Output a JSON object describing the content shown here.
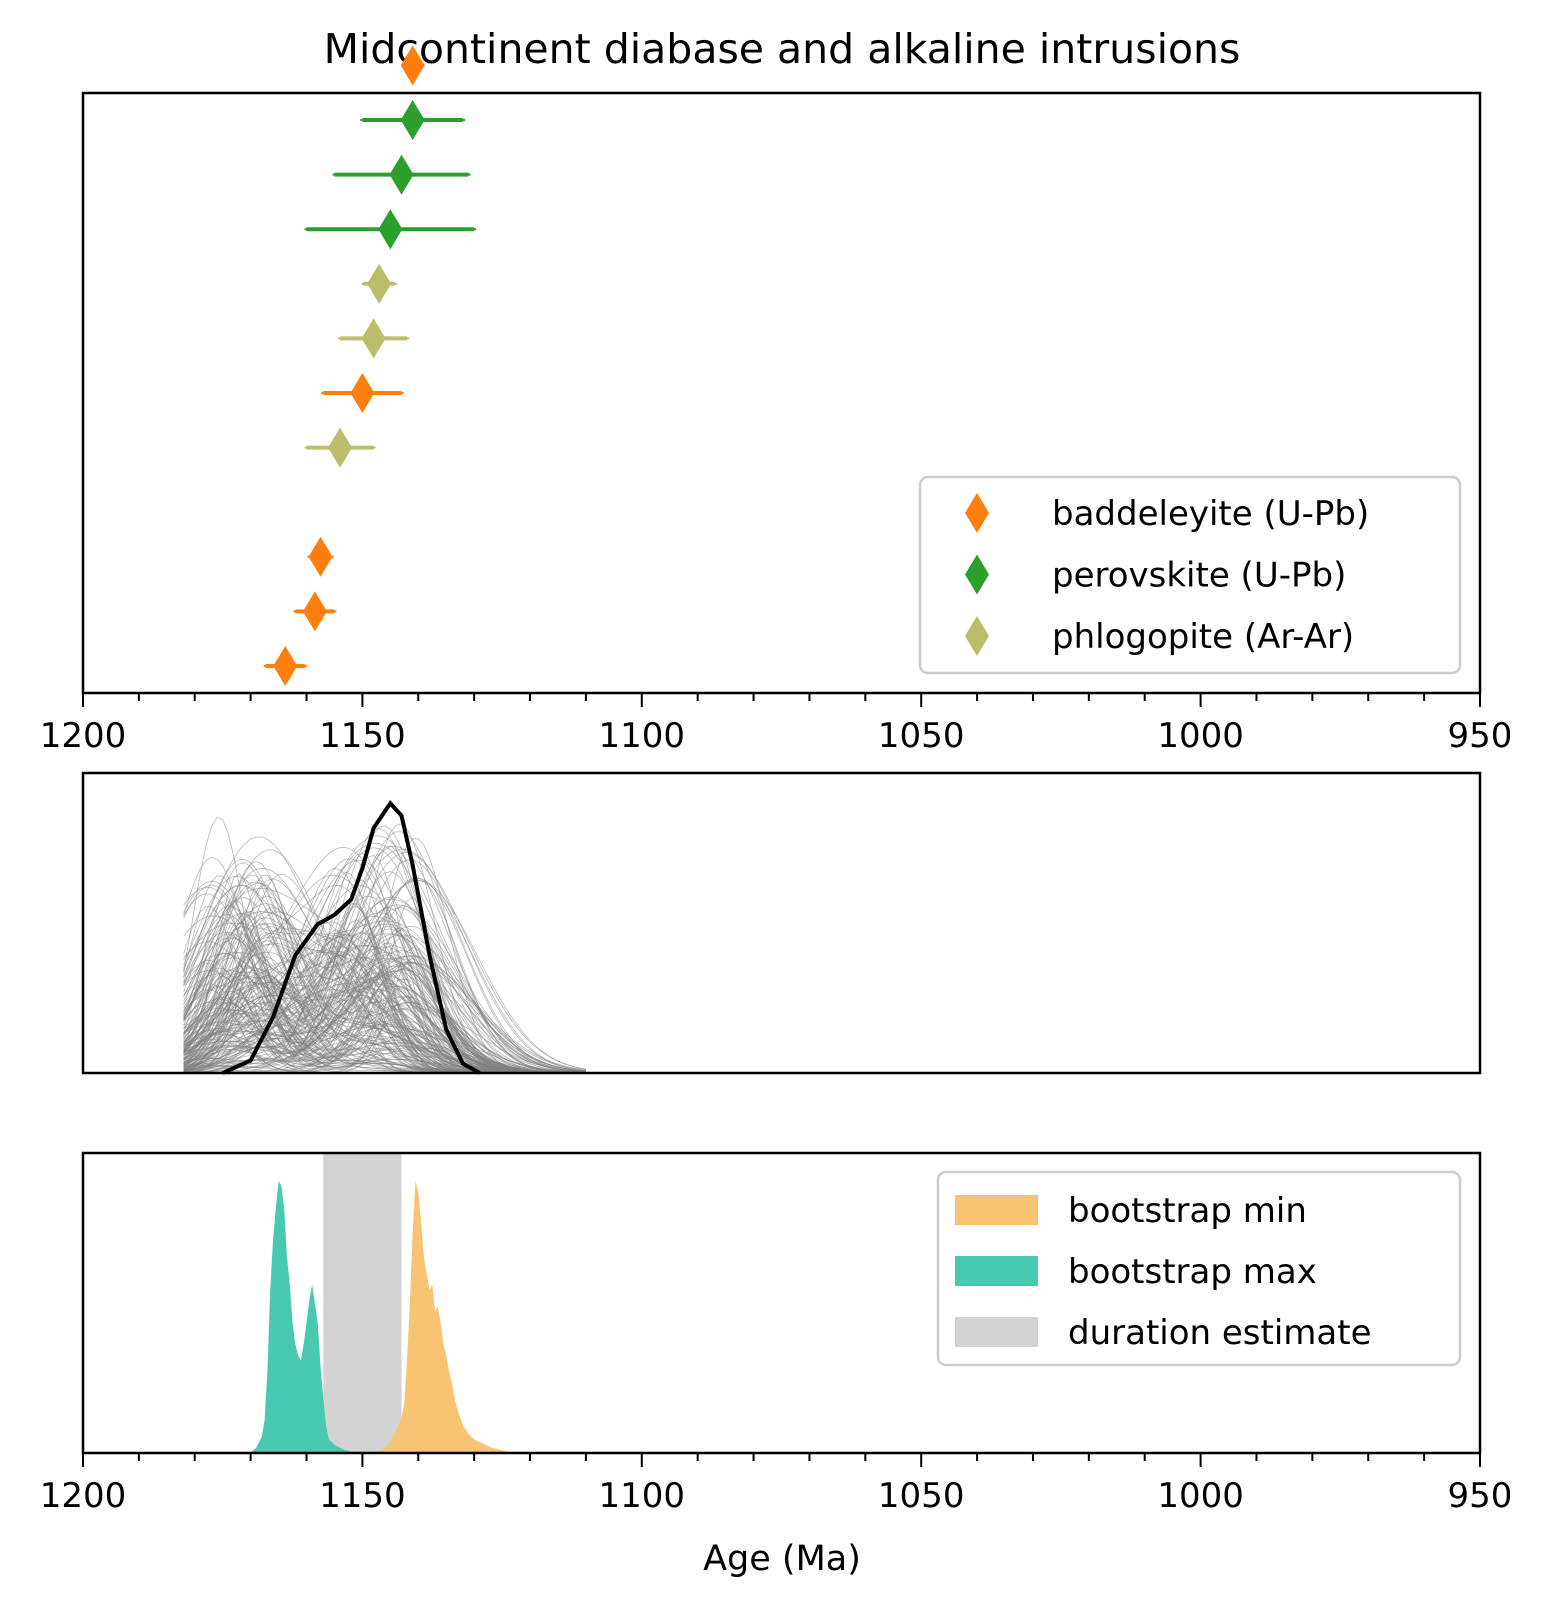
{
  "chart_data": [
    {
      "type": "scatter",
      "panel": "age-errorbars",
      "title": "Midcontinent diabase and alkaline intrusions",
      "x_reversed": true,
      "xlim": [
        1200,
        950
      ],
      "xticks": [
        1200,
        1150,
        1100,
        1050,
        1000,
        950
      ],
      "xtick_labels": [
        "1200",
        "1150",
        "1100",
        "1050",
        "1000",
        "950"
      ],
      "y_axis_shown": false,
      "grid": false,
      "legend_position": "lower-right",
      "series": [
        {
          "name": "baddeleyite (U-Pb)",
          "color": "#ff7f0e",
          "marker": "diamond",
          "points": [
            {
              "rank": 11,
              "age": 1141.0,
              "err": 0.6
            },
            {
              "rank": 5,
              "age": 1150.0,
              "err": 7.0
            },
            {
              "rank": 2,
              "age": 1157.5,
              "err": 2.0
            },
            {
              "rank": 1,
              "age": 1158.5,
              "err": 3.5
            },
            {
              "rank": 0,
              "age": 1163.8,
              "err": 3.5
            }
          ]
        },
        {
          "name": "perovskite (U-Pb)",
          "color": "#2ca02c",
          "marker": "diamond",
          "points": [
            {
              "rank": 10,
              "age": 1141.0,
              "err": 9.0
            },
            {
              "rank": 9,
              "age": 1143.0,
              "err": 12.0
            },
            {
              "rank": 8,
              "age": 1145.0,
              "err": 15.0
            }
          ]
        },
        {
          "name": "phlogopite (Ar-Ar)",
          "color": "#bcbd6b",
          "marker": "diamond",
          "points": [
            {
              "rank": 7,
              "age": 1147.0,
              "err": 2.8
            },
            {
              "rank": 6,
              "age": 1148.0,
              "err": 6.0
            },
            {
              "rank": 4,
              "age": 1154.0,
              "err": 6.0
            }
          ]
        }
      ]
    },
    {
      "type": "line",
      "panel": "bootstrap-kde",
      "xlim": [
        1200,
        950
      ],
      "y_axis_shown": false,
      "description_series": [
        {
          "role": "bootstrap resampled curves",
          "color": "#808080",
          "count_drawn": 200
        },
        {
          "role": "summary curve",
          "color": "#000000",
          "x": [
            1175,
            1170,
            1166,
            1162,
            1158,
            1155,
            1152,
            1150,
            1148,
            1145,
            1143,
            1141,
            1138,
            1135,
            1132,
            1129
          ],
          "y": [
            0.0,
            0.04,
            0.18,
            0.38,
            0.48,
            0.51,
            0.56,
            0.66,
            0.79,
            0.87,
            0.83,
            0.67,
            0.38,
            0.14,
            0.03,
            0.0
          ]
        }
      ]
    },
    {
      "type": "bar",
      "panel": "bootstrap-histograms",
      "xlim": [
        1200,
        950
      ],
      "xticks": [
        1200,
        1150,
        1100,
        1050,
        1000,
        950
      ],
      "xtick_labels": [
        "1200",
        "1150",
        "1100",
        "1050",
        "1000",
        "950"
      ],
      "xlabel": "Age (Ma)",
      "y_axis_shown": false,
      "legend_position": "upper-right",
      "series": [
        {
          "name": "bootstrap min",
          "color": "#f8c373",
          "x": [
            1148,
            1146,
            1145,
            1144,
            1143,
            1142.5,
            1142,
            1141.5,
            1141,
            1140.5,
            1140,
            1139.5,
            1139,
            1138.5,
            1138,
            1137.5,
            1137,
            1136.5,
            1136,
            1135.5,
            1135,
            1134.5,
            1134,
            1133.5,
            1133,
            1132.5,
            1132,
            1131,
            1130,
            1129,
            1128,
            1127,
            1126,
            1125,
            1124,
            1122
          ],
          "y": [
            0.0,
            0.02,
            0.04,
            0.08,
            0.13,
            0.18,
            0.35,
            0.55,
            0.82,
            1.0,
            0.96,
            0.85,
            0.72,
            0.66,
            0.6,
            0.62,
            0.52,
            0.54,
            0.48,
            0.4,
            0.36,
            0.3,
            0.26,
            0.2,
            0.16,
            0.13,
            0.1,
            0.07,
            0.05,
            0.04,
            0.03,
            0.02,
            0.015,
            0.01,
            0.005,
            0.0
          ]
        },
        {
          "name": "bootstrap max",
          "color": "#48c9b0",
          "x": [
            1170,
            1169,
            1168,
            1167.5,
            1167,
            1166.5,
            1166,
            1165.5,
            1165,
            1164.5,
            1164,
            1163.5,
            1163,
            1162.5,
            1162,
            1161.5,
            1161,
            1160.5,
            1160,
            1159.5,
            1159,
            1158.5,
            1158,
            1157.5,
            1157,
            1156.5,
            1156,
            1155,
            1154,
            1153,
            1151
          ],
          "y": [
            0.0,
            0.02,
            0.06,
            0.12,
            0.3,
            0.6,
            0.78,
            0.9,
            1.0,
            0.98,
            0.9,
            0.72,
            0.62,
            0.48,
            0.4,
            0.36,
            0.34,
            0.4,
            0.48,
            0.56,
            0.62,
            0.55,
            0.48,
            0.32,
            0.2,
            0.1,
            0.05,
            0.03,
            0.02,
            0.01,
            0.0
          ]
        }
      ],
      "span": {
        "name": "duration estimate",
        "color": "#d3d3d3",
        "x0": 1157,
        "x1": 1143
      }
    }
  ]
}
